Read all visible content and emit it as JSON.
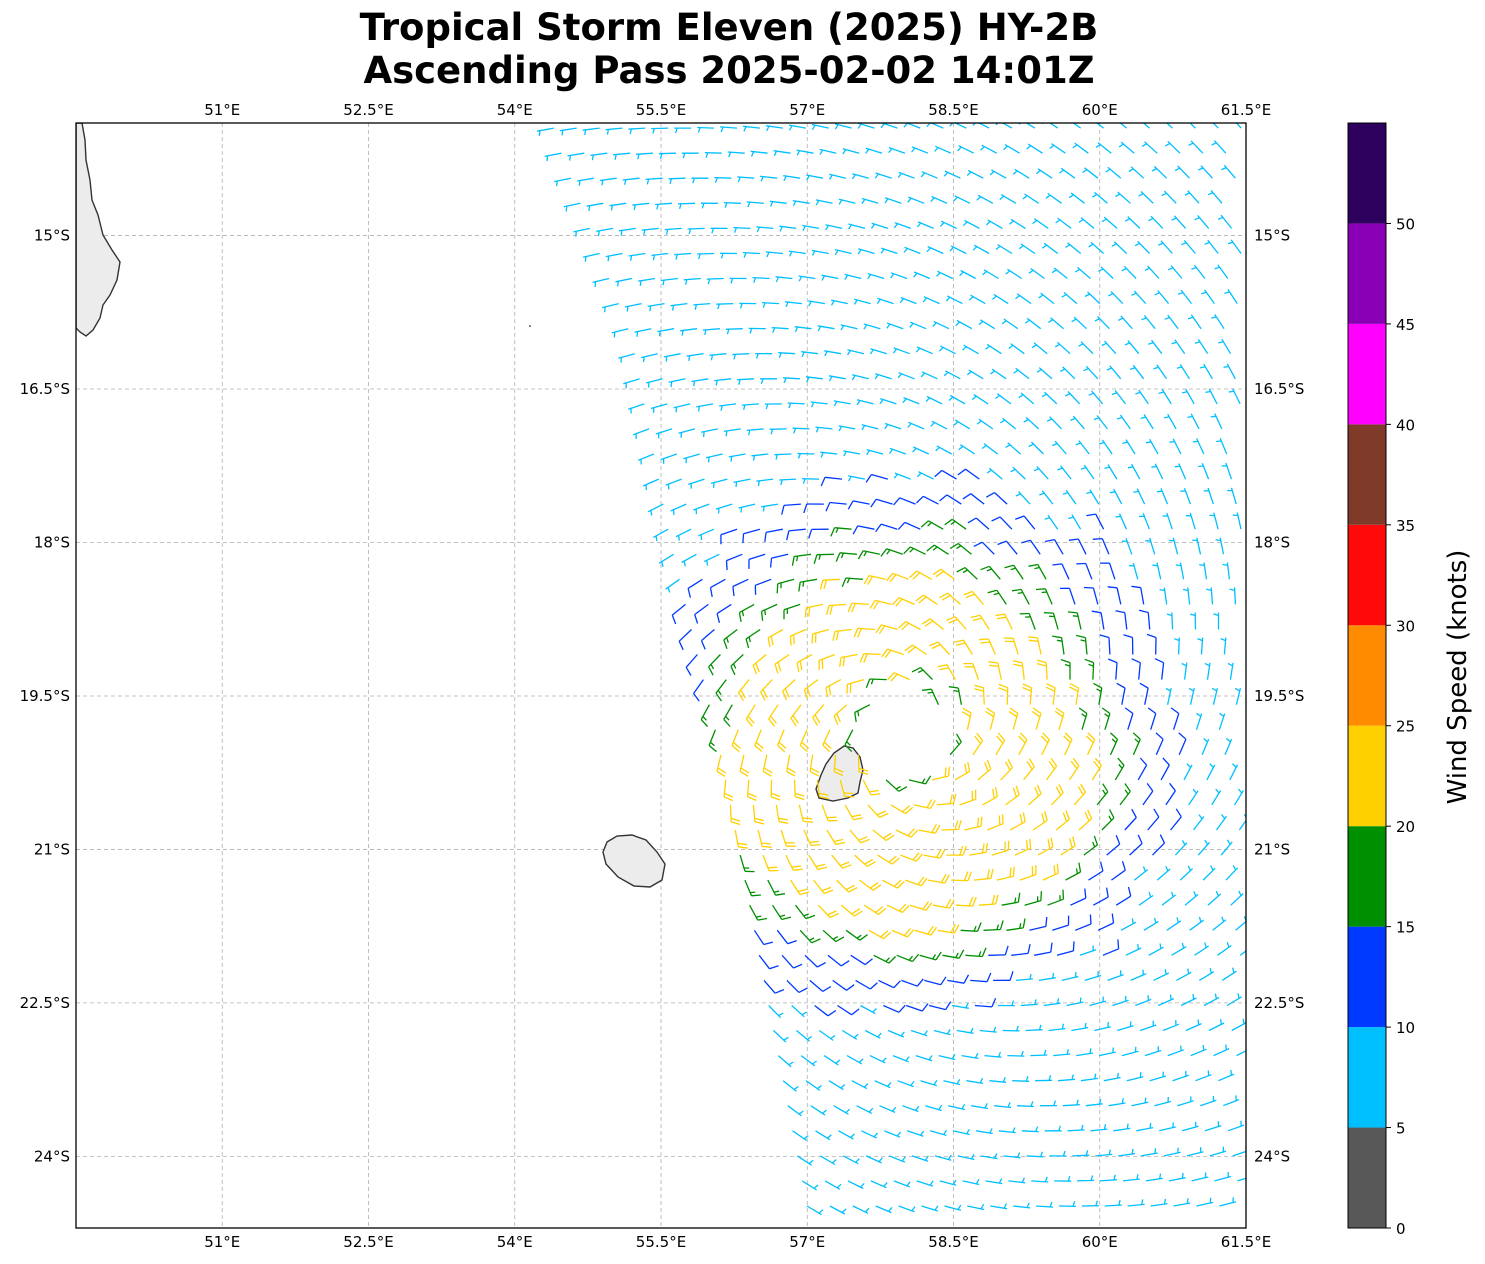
{
  "title": {
    "line1": "Tropical Storm Eleven (2025) HY-2B",
    "line2": "Ascending Pass 2025-02-02 14:01Z"
  },
  "map": {
    "lon_range": [
      49.5,
      61.5
    ],
    "lat_range": [
      -13.9,
      -24.7
    ],
    "lon_ticks": [
      51,
      52.5,
      54,
      55.5,
      57,
      58.5,
      60,
      61.5
    ],
    "lon_labels": [
      "51°E",
      "52.5°E",
      "54°E",
      "55.5°E",
      "57°E",
      "58.5°E",
      "60°E",
      "61.5°E"
    ],
    "lat_ticks": [
      -15,
      -16.5,
      -18,
      -19.5,
      -21,
      -22.5,
      -24
    ],
    "lat_labels": [
      "15°S",
      "16.5°S",
      "18°S",
      "19.5°S",
      "21°S",
      "22.5°S",
      "24°S"
    ],
    "grid": true,
    "storm_center": {
      "lon": 58.0,
      "lat": -19.9
    },
    "swath_west_edge": [
      [
        54.4,
        -14.0
      ],
      [
        55.2,
        -16.0
      ],
      [
        55.6,
        -18.0
      ],
      [
        56.1,
        -20.0
      ],
      [
        56.5,
        -22.0
      ],
      [
        57.0,
        -24.5
      ]
    ]
  },
  "colorbar": {
    "label": "Wind Speed (knots)",
    "ticks": [
      "0",
      "5",
      "10",
      "15",
      "20",
      "25",
      "30",
      "35",
      "40",
      "45",
      "50"
    ],
    "bins": [
      {
        "min": 0,
        "max": 5,
        "color": "#585858"
      },
      {
        "min": 5,
        "max": 10,
        "color": "#00bfff"
      },
      {
        "min": 10,
        "max": 15,
        "color": "#0039ff"
      },
      {
        "min": 15,
        "max": 20,
        "color": "#008f00"
      },
      {
        "min": 20,
        "max": 25,
        "color": "#ffd000"
      },
      {
        "min": 25,
        "max": 30,
        "color": "#ff8c00"
      },
      {
        "min": 30,
        "max": 35,
        "color": "#ff0a0a"
      },
      {
        "min": 35,
        "max": 40,
        "color": "#7f3a2a"
      },
      {
        "min": 40,
        "max": 45,
        "color": "#ff00ff"
      },
      {
        "min": 45,
        "max": 50,
        "color": "#8a00b5"
      },
      {
        "min": 50,
        "max": 55,
        "color": "#2d005e"
      }
    ]
  },
  "barb_colors": {
    "5-10": "#00bfff",
    "10-15": "#0039ff",
    "15-20": "#008f00",
    "20-25": "#ffd000"
  }
}
